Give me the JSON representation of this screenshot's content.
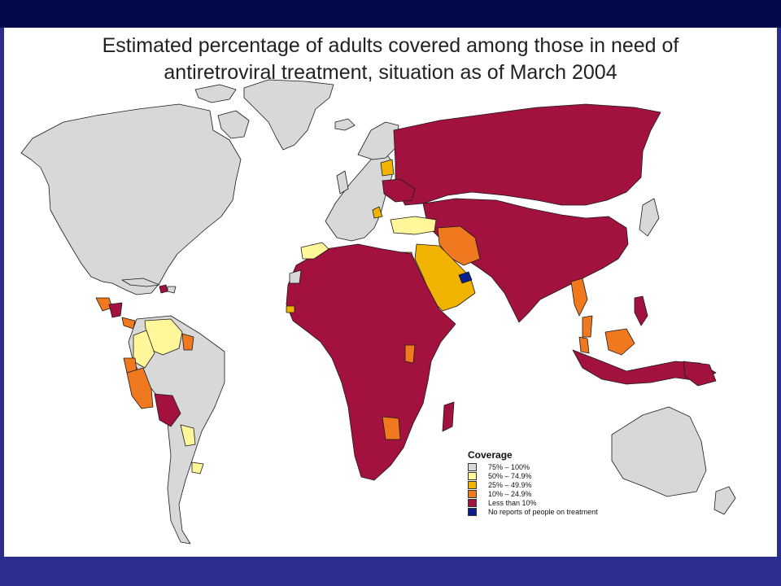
{
  "title": {
    "line1": "Estimated percentage of adults covered among those in need of",
    "line2": "antiretroviral treatment, situation as of March 2004"
  },
  "colors": {
    "high": "#d8d8d8",
    "mid_high": "#fff79a",
    "mid": "#f0b400",
    "low": "#f0781e",
    "very_low": "#a3123f",
    "none": "#0a1e8c",
    "ocean": "#ffffff",
    "border": "#1a1a1a"
  },
  "legend": {
    "title": "Coverage",
    "items": [
      {
        "label": "75% – 100%",
        "color": "#d8d8d8"
      },
      {
        "label": "50% – 74.9%",
        "color": "#fff79a"
      },
      {
        "label": "25% – 49.9%",
        "color": "#f0b400"
      },
      {
        "label": "10% – 24.9%",
        "color": "#f0781e"
      },
      {
        "label": "Less than 10%",
        "color": "#a3123f"
      },
      {
        "label": "No reports of people on treatment",
        "color": "#0a1e8c"
      }
    ]
  }
}
